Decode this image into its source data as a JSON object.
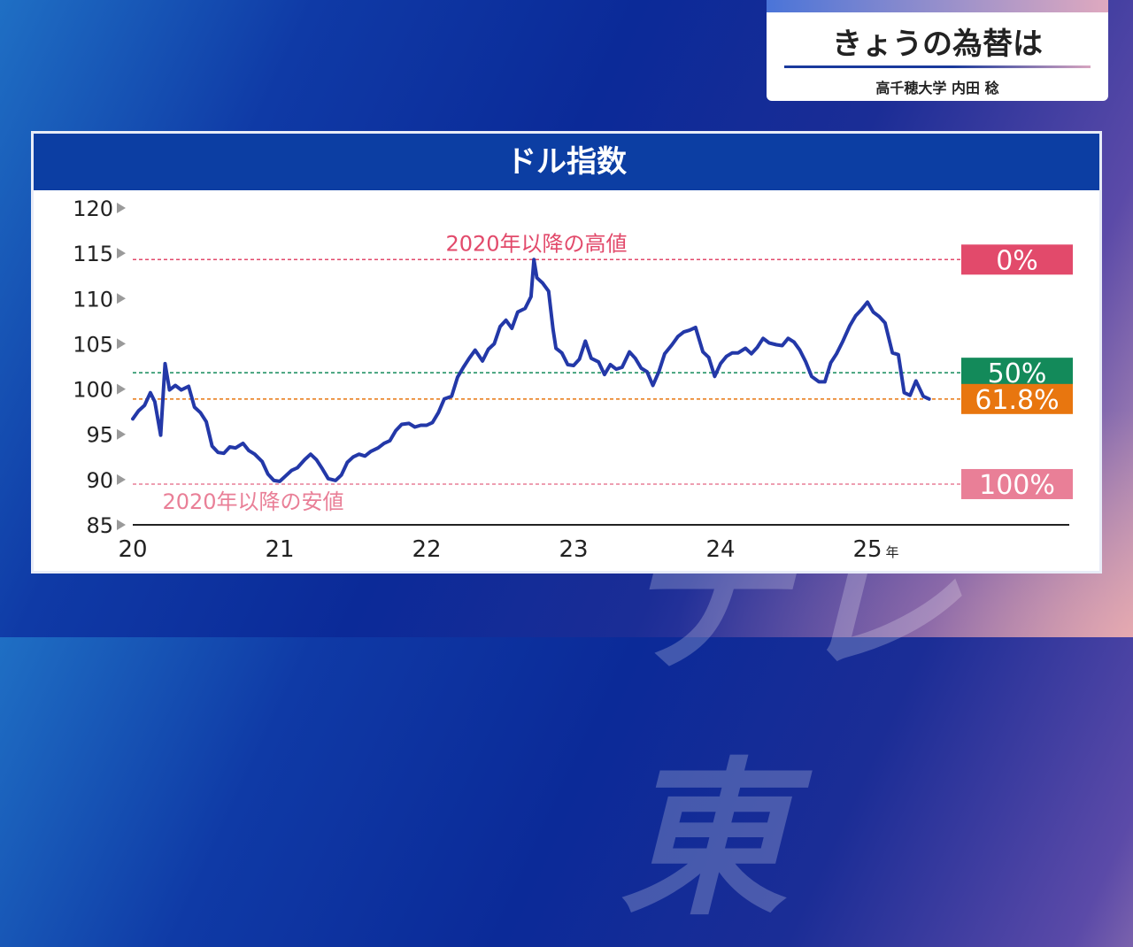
{
  "header_card": {
    "title": "きょうの為替は",
    "presenter": "高千穂大学 内田 稔"
  },
  "watermark": "テレ東",
  "chart_data": {
    "type": "line",
    "title": "ドル指数",
    "ylim": [
      85,
      120
    ],
    "yticks": [
      120,
      115,
      110,
      105,
      100,
      95,
      90,
      85
    ],
    "xticks": [
      "20",
      "21",
      "22",
      "23",
      "24",
      "25"
    ],
    "x_unit": "年",
    "grid": false,
    "series": [
      {
        "color": "#2338a8",
        "points": [
          [
            20.0,
            96.7
          ],
          [
            20.04,
            97.6
          ],
          [
            20.08,
            98.2
          ],
          [
            20.12,
            99.6
          ],
          [
            20.15,
            98.6
          ],
          [
            20.19,
            94.9
          ],
          [
            20.22,
            102.8
          ],
          [
            20.25,
            99.9
          ],
          [
            20.29,
            100.4
          ],
          [
            20.33,
            99.9
          ],
          [
            20.38,
            100.3
          ],
          [
            20.42,
            98.0
          ],
          [
            20.46,
            97.4
          ],
          [
            20.5,
            96.4
          ],
          [
            20.54,
            93.7
          ],
          [
            20.58,
            93.0
          ],
          [
            20.62,
            92.9
          ],
          [
            20.66,
            93.6
          ],
          [
            20.7,
            93.5
          ],
          [
            20.75,
            94.0
          ],
          [
            20.79,
            93.2
          ],
          [
            20.83,
            92.8
          ],
          [
            20.88,
            92.0
          ],
          [
            20.92,
            90.6
          ],
          [
            20.96,
            89.9
          ],
          [
            21.0,
            89.8
          ],
          [
            21.04,
            90.4
          ],
          [
            21.08,
            91.0
          ],
          [
            21.12,
            91.3
          ],
          [
            21.17,
            92.2
          ],
          [
            21.21,
            92.8
          ],
          [
            21.25,
            92.2
          ],
          [
            21.29,
            91.2
          ],
          [
            21.33,
            90.1
          ],
          [
            21.38,
            89.9
          ],
          [
            21.42,
            90.5
          ],
          [
            21.46,
            91.9
          ],
          [
            21.5,
            92.5
          ],
          [
            21.54,
            92.8
          ],
          [
            21.58,
            92.6
          ],
          [
            21.62,
            93.1
          ],
          [
            21.67,
            93.5
          ],
          [
            21.71,
            94.0
          ],
          [
            21.75,
            94.3
          ],
          [
            21.79,
            95.4
          ],
          [
            21.83,
            96.1
          ],
          [
            21.88,
            96.2
          ],
          [
            21.92,
            95.8
          ],
          [
            21.96,
            96.0
          ],
          [
            22.0,
            96.0
          ],
          [
            22.04,
            96.3
          ],
          [
            22.08,
            97.4
          ],
          [
            22.12,
            98.9
          ],
          [
            22.17,
            99.2
          ],
          [
            22.21,
            101.3
          ],
          [
            22.25,
            102.4
          ],
          [
            22.29,
            103.4
          ],
          [
            22.33,
            104.3
          ],
          [
            22.38,
            103.1
          ],
          [
            22.42,
            104.4
          ],
          [
            22.46,
            105.0
          ],
          [
            22.5,
            106.9
          ],
          [
            22.54,
            107.6
          ],
          [
            22.58,
            106.7
          ],
          [
            22.62,
            108.5
          ],
          [
            22.67,
            108.9
          ],
          [
            22.71,
            110.2
          ],
          [
            22.73,
            114.3
          ],
          [
            22.75,
            112.3
          ],
          [
            22.79,
            111.7
          ],
          [
            22.83,
            110.8
          ],
          [
            22.86,
            106.6
          ],
          [
            22.88,
            104.5
          ],
          [
            22.92,
            104.0
          ],
          [
            22.96,
            102.7
          ],
          [
            23.0,
            102.6
          ],
          [
            23.04,
            103.3
          ],
          [
            23.08,
            105.3
          ],
          [
            23.12,
            103.4
          ],
          [
            23.17,
            103.0
          ],
          [
            23.21,
            101.6
          ],
          [
            23.25,
            102.7
          ],
          [
            23.29,
            102.2
          ],
          [
            23.33,
            102.4
          ],
          [
            23.38,
            104.1
          ],
          [
            23.42,
            103.4
          ],
          [
            23.46,
            102.3
          ],
          [
            23.5,
            101.9
          ],
          [
            23.54,
            100.4
          ],
          [
            23.58,
            101.9
          ],
          [
            23.62,
            103.9
          ],
          [
            23.67,
            104.9
          ],
          [
            23.71,
            105.8
          ],
          [
            23.75,
            106.3
          ],
          [
            23.79,
            106.5
          ],
          [
            23.83,
            106.8
          ],
          [
            23.88,
            104.1
          ],
          [
            23.92,
            103.5
          ],
          [
            23.96,
            101.4
          ],
          [
            24.0,
            102.8
          ],
          [
            24.04,
            103.6
          ],
          [
            24.08,
            104.0
          ],
          [
            24.12,
            104.0
          ],
          [
            24.17,
            104.5
          ],
          [
            24.21,
            103.9
          ],
          [
            24.25,
            104.6
          ],
          [
            24.29,
            105.6
          ],
          [
            24.33,
            105.1
          ],
          [
            24.38,
            104.9
          ],
          [
            24.42,
            104.8
          ],
          [
            24.46,
            105.6
          ],
          [
            24.5,
            105.2
          ],
          [
            24.54,
            104.3
          ],
          [
            24.58,
            103.0
          ],
          [
            24.62,
            101.4
          ],
          [
            24.67,
            100.8
          ],
          [
            24.71,
            100.8
          ],
          [
            24.75,
            102.9
          ],
          [
            24.79,
            103.9
          ],
          [
            24.83,
            105.2
          ],
          [
            24.88,
            107.0
          ],
          [
            24.92,
            108.1
          ],
          [
            24.96,
            108.8
          ],
          [
            25.0,
            109.6
          ],
          [
            25.04,
            108.5
          ],
          [
            25.08,
            108.0
          ],
          [
            25.12,
            107.3
          ],
          [
            25.17,
            104.0
          ],
          [
            25.21,
            103.8
          ],
          [
            25.25,
            99.6
          ],
          [
            25.29,
            99.3
          ],
          [
            25.33,
            100.9
          ],
          [
            25.38,
            99.2
          ],
          [
            25.42,
            98.9
          ]
        ]
      }
    ],
    "reference_lines": [
      {
        "label": "0%",
        "value": 114.3,
        "color": "#e24a6b",
        "note": "2020年以降の高値"
      },
      {
        "label": "50%",
        "value": 101.8,
        "color": "#138a5a",
        "note": ""
      },
      {
        "label": "61.8%",
        "value": 98.9,
        "color": "#e8760f",
        "note": ""
      },
      {
        "label": "100%",
        "value": 89.5,
        "color": "#e97f97",
        "note": "2020年以降の安値"
      }
    ]
  }
}
